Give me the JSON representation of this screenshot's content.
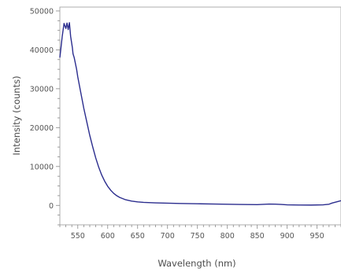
{
  "chart_data": {
    "type": "line",
    "title": "",
    "xlabel": "Wavelength (nm)",
    "ylabel": "Intensity (counts)",
    "xlim": [
      520,
      990
    ],
    "ylim": [
      -5000,
      51000
    ],
    "x_ticks": [
      550,
      600,
      650,
      700,
      750,
      800,
      850,
      900,
      950
    ],
    "y_ticks": [
      0,
      10000,
      20000,
      30000,
      40000,
      50000
    ],
    "grid": false,
    "legend": "none",
    "line_color": "#2b2d8e",
    "series": [
      {
        "x": [
          520,
          524,
          527,
          530,
          532,
          534,
          536,
          538,
          540,
          541,
          542,
          544,
          546,
          548,
          550,
          555,
          560,
          565,
          570,
          575,
          580,
          585,
          590,
          595,
          600,
          605,
          610,
          615,
          620,
          630,
          640,
          650,
          660,
          680,
          700,
          720,
          750,
          780,
          800,
          820,
          850,
          870,
          880,
          890,
          900,
          920,
          940,
          960,
          970,
          975,
          980,
          985,
          990
        ],
        "y": [
          38000,
          43500,
          46800,
          45500,
          46900,
          45200,
          47000,
          43500,
          41500,
          40500,
          39000,
          38000,
          36500,
          35000,
          33000,
          29000,
          25000,
          21500,
          18000,
          15000,
          12200,
          9800,
          7800,
          6200,
          4900,
          3900,
          3100,
          2500,
          2050,
          1450,
          1100,
          900,
          780,
          650,
          580,
          500,
          420,
          350,
          300,
          250,
          200,
          350,
          320,
          250,
          150,
          100,
          80,
          150,
          300,
          600,
          800,
          1000,
          1200
        ]
      }
    ]
  }
}
